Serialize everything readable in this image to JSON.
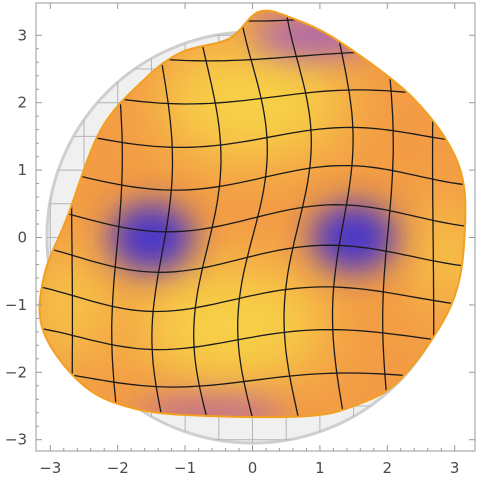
{
  "chart_data": {
    "type": "density-mesh-plot",
    "title": "",
    "xlabel": "",
    "ylabel": "",
    "xlim": [
      -3.2,
      3.2
    ],
    "ylim": [
      -3.15,
      3.4
    ],
    "x_ticks": [
      -3,
      -2,
      -1,
      0,
      1,
      2,
      3
    ],
    "y_ticks": [
      -3,
      -2,
      -1,
      0,
      1,
      2,
      3
    ],
    "x_tick_labels": [
      "−3",
      "−2",
      "−1",
      "0",
      "1",
      "2",
      "3"
    ],
    "y_tick_labels": [
      "−3",
      "−2",
      "−1",
      "0",
      "1",
      "2",
      "3"
    ],
    "background_disk": {
      "center": [
        0,
        0
      ],
      "radius": 3.05,
      "grid_step": 0.5,
      "color": "#f0f0f0"
    },
    "region_boundary": [
      [
        -0.35,
        2.95
      ],
      [
        0.1,
        3.35
      ],
      [
        0.6,
        3.25
      ],
      [
        1.3,
        2.9
      ],
      [
        2.4,
        2.05
      ],
      [
        3.05,
        1.1
      ],
      [
        3.15,
        0.1
      ],
      [
        2.95,
        -1.0
      ],
      [
        2.2,
        -2.1
      ],
      [
        1.5,
        -2.5
      ],
      [
        0.8,
        -2.65
      ],
      [
        -0.6,
        -2.65
      ],
      [
        -1.7,
        -2.55
      ],
      [
        -2.5,
        -2.2
      ],
      [
        -3.1,
        -1.4
      ],
      [
        -3.1,
        -0.6
      ],
      [
        -2.75,
        0.3
      ],
      [
        -2.25,
        1.6
      ],
      [
        -1.6,
        2.35
      ],
      [
        -1.05,
        2.75
      ]
    ],
    "density_peaks": [
      {
        "x": -1.5,
        "y": 0.0,
        "value": "low"
      },
      {
        "x": 1.5,
        "y": 0.0,
        "value": "low"
      },
      {
        "x": 0.0,
        "y": 2.0,
        "value": "high"
      },
      {
        "x": -0.3,
        "y": -1.3,
        "value": "high"
      }
    ],
    "mesh": {
      "u_lines": 11,
      "v_lines": 11,
      "color": "#000000"
    },
    "colors": {
      "high": "#f7d046",
      "mid": "#f39c45",
      "low": "#3f2fd0",
      "edge": "#f2a020",
      "mesh": "#1a1a1a",
      "frame": "#9a9a9a"
    }
  }
}
